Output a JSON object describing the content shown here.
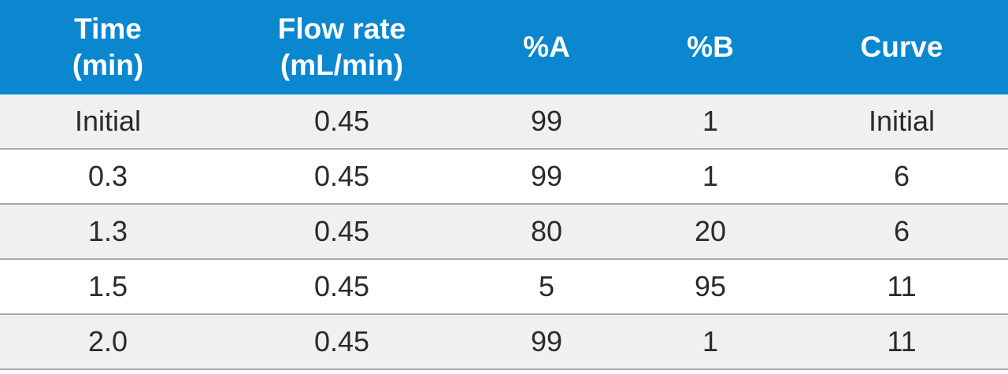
{
  "table": {
    "headers": [
      "Time\n(min)",
      "Flow rate\n(mL/min)",
      "%A",
      "%B",
      "Curve"
    ],
    "rows": [
      [
        "Initial",
        "0.45",
        "99",
        "1",
        "Initial"
      ],
      [
        "0.3",
        "0.45",
        "99",
        "1",
        "6"
      ],
      [
        "1.3",
        "0.45",
        "80",
        "20",
        "6"
      ],
      [
        "1.5",
        "0.45",
        "5",
        "95",
        "11"
      ],
      [
        "2.0",
        "0.45",
        "99",
        "1",
        "11"
      ]
    ]
  },
  "colors": {
    "header_bg": "#0b87d0",
    "header_text": "#ffffff",
    "row_shaded": "#f0f0f2",
    "row_plain": "#ffffff",
    "divider": "#a9aaad"
  }
}
